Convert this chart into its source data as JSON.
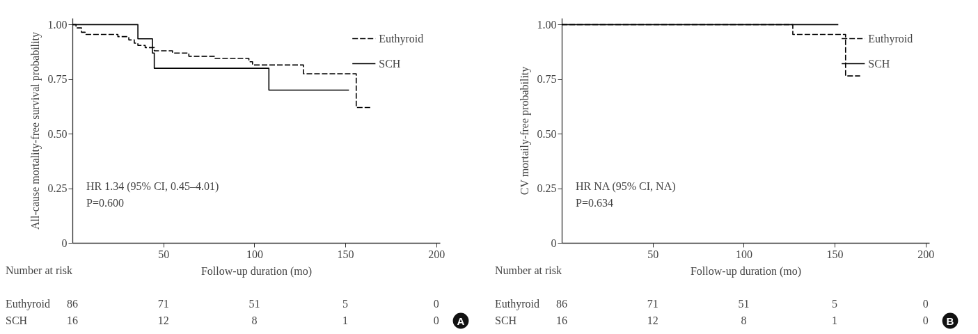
{
  "chart_data": [
    {
      "type": "step",
      "xlabel": "Follow-up duration (mo)",
      "ylabel": "All-cause mortality-free survival probability",
      "xlim": [
        0,
        202
      ],
      "xticks": [
        50,
        100,
        150,
        200
      ],
      "ylim": [
        0,
        1.03
      ],
      "yticks": [
        0,
        {
          "value": 0.25,
          "label": "0.25"
        },
        {
          "value": 0.5,
          "label": "0.50"
        },
        {
          "value": 0.75,
          "label": "0.75"
        },
        {
          "value": 1,
          "label": "1.00"
        }
      ],
      "legend": "top right",
      "grid": false,
      "series": [
        {
          "name": "Euthyroid",
          "color": "#000000",
          "line_style": "dashed",
          "x": [
            0,
            2,
            5,
            7,
            25,
            31,
            34,
            36,
            40,
            45,
            55,
            64,
            78,
            97,
            99,
            127,
            156,
            164
          ],
          "values": [
            1,
            0.985,
            0.965,
            0.955,
            0.945,
            0.93,
            0.915,
            0.905,
            0.895,
            0.88,
            0.87,
            0.855,
            0.845,
            0.83,
            0.815,
            0.775,
            0.62,
            0.62
          ]
        },
        {
          "name": "SCH",
          "color": "#000000",
          "line_style": "solid",
          "x": [
            0,
            36,
            44,
            45,
            108,
            152
          ],
          "values": [
            1,
            0.935,
            0.87,
            0.8,
            0.7,
            0.7
          ]
        }
      ],
      "annotations": [
        "HR 1.34 (95% CI, 0.45–4.01)",
        "P=0.600",
        "Number at risk",
        "Euthyroid",
        "86",
        "71",
        "51",
        "5",
        "0",
        "SCH",
        "16",
        "12",
        "8",
        "1",
        "0",
        "A"
      ]
    },
    {
      "type": "step",
      "xlabel": "Follow-up duration (mo)",
      "ylabel": "CV mortaily-free probability",
      "xlim": [
        0,
        202
      ],
      "xticks": [
        50,
        100,
        150,
        200
      ],
      "ylim": [
        0,
        1.03
      ],
      "yticks": [
        0,
        {
          "value": 0.25,
          "label": "0.25"
        },
        {
          "value": 0.5,
          "label": "0.50"
        },
        {
          "value": 0.75,
          "label": "0.75"
        },
        {
          "value": 1,
          "label": "1.00"
        }
      ],
      "legend": "top right",
      "grid": false,
      "series": [
        {
          "name": "Euthyroid",
          "color": "#000000",
          "line_style": "dashed",
          "x": [
            0,
            127,
            156,
            164
          ],
          "values": [
            1,
            0.955,
            0.765,
            0.765
          ]
        },
        {
          "name": "SCH",
          "color": "#000000",
          "line_style": "solid",
          "x": [
            0,
            152
          ],
          "values": [
            1,
            1
          ]
        }
      ],
      "annotations": [
        "HR NA (95% CI, NA)",
        "P=0.634",
        "Number at risk",
        "Euthyroid",
        "86",
        "71",
        "51",
        "5",
        "0",
        "SCH",
        "16",
        "12",
        "8",
        "1",
        "0",
        "B"
      ]
    }
  ]
}
